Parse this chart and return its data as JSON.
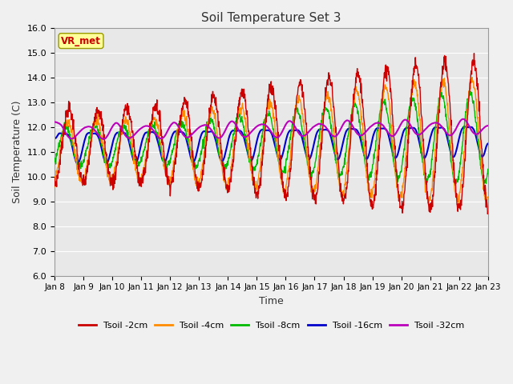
{
  "title": "Soil Temperature Set 3",
  "xlabel": "Time",
  "ylabel": "Soil Temperature (C)",
  "ylim": [
    6.0,
    16.0
  ],
  "yticks": [
    6.0,
    7.0,
    8.0,
    9.0,
    10.0,
    11.0,
    12.0,
    13.0,
    14.0,
    15.0,
    16.0
  ],
  "xtick_labels": [
    "Jan 8",
    "Jan 9",
    "Jan 10",
    "Jan 11",
    "Jan 12",
    "Jan 13",
    "Jan 14",
    "Jan 15",
    "Jan 16",
    "Jan 17",
    "Jan 18",
    "Jan 19",
    "Jan 20",
    "Jan 21",
    "Jan 22",
    "Jan 23"
  ],
  "legend_labels": [
    "Tsoil -2cm",
    "Tsoil -4cm",
    "Tsoil -8cm",
    "Tsoil -16cm",
    "Tsoil -32cm"
  ],
  "legend_colors": [
    "#cc0000",
    "#ff8c00",
    "#00bb00",
    "#0000cc",
    "#bb00bb"
  ],
  "watermark_text": "VR_met",
  "watermark_color": "#cc0000",
  "watermark_bg": "#ffff99",
  "plot_bg": "#e8e8e8",
  "fig_bg": "#f0f0f0",
  "grid_color": "#ffffff",
  "n_points": 1440
}
